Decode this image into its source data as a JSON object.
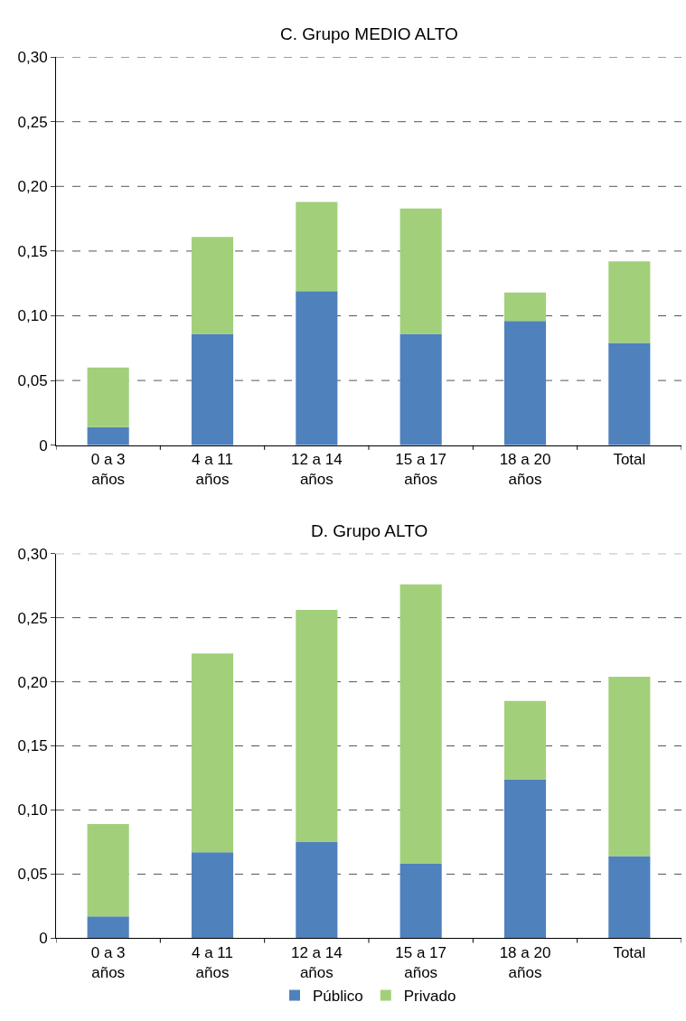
{
  "chart_data": [
    {
      "type": "bar",
      "title": "C. Grupo MEDIO ALTO",
      "stacked": true,
      "categories": [
        "0 a 3 años",
        "4 a 11 años",
        "12 a 14 años",
        "15 a 17 años",
        "18 a 20 años",
        "Total"
      ],
      "series": [
        {
          "color": "#4f81bd",
          "values": [
            0.014,
            0.086,
            0.119,
            0.086,
            0.096,
            0.079
          ]
        },
        {
          "color": "#a2d07a",
          "values": [
            0.046,
            0.075,
            0.069,
            0.097,
            0.022,
            0.063
          ]
        }
      ],
      "ylim": [
        0,
        0.3
      ],
      "yticks": [
        0,
        {
          "value": 0.05,
          "label": "0,05"
        },
        {
          "value": 0.1,
          "label": "0,10"
        },
        {
          "value": 0.15,
          "label": "0,15"
        },
        {
          "value": 0.2,
          "label": "0,20"
        },
        {
          "value": 0.25,
          "label": "0,25"
        },
        {
          "value": 0.3,
          "label": "0,30"
        }
      ],
      "grid": "y",
      "legend": false
    },
    {
      "type": "bar",
      "title": "D. Grupo ALTO",
      "stacked": true,
      "categories": [
        "0 a 3 años",
        "4 a 11 años",
        "12 a 14 años",
        "15 a 17 años",
        "18 a 20 años",
        "Total"
      ],
      "series": [
        {
          "name": "Público",
          "color": "#4f81bd",
          "values": [
            0.017,
            0.067,
            0.075,
            0.058,
            0.124,
            0.064
          ]
        },
        {
          "name": "Privado",
          "color": "#a2d07a",
          "values": [
            0.072,
            0.155,
            0.181,
            0.218,
            0.061,
            0.14
          ]
        }
      ],
      "ylim": [
        0,
        0.3
      ],
      "yticks": [
        0,
        {
          "value": 0.05,
          "label": "0,05"
        },
        {
          "value": 0.1,
          "label": "0,10"
        },
        {
          "value": 0.15,
          "label": "0,15"
        },
        {
          "value": 0.2,
          "label": "0,20"
        },
        {
          "value": 0.25,
          "label": "0,25"
        },
        {
          "value": 0.3,
          "label": "0,30"
        }
      ],
      "grid": "y",
      "legend": "bottom"
    }
  ]
}
